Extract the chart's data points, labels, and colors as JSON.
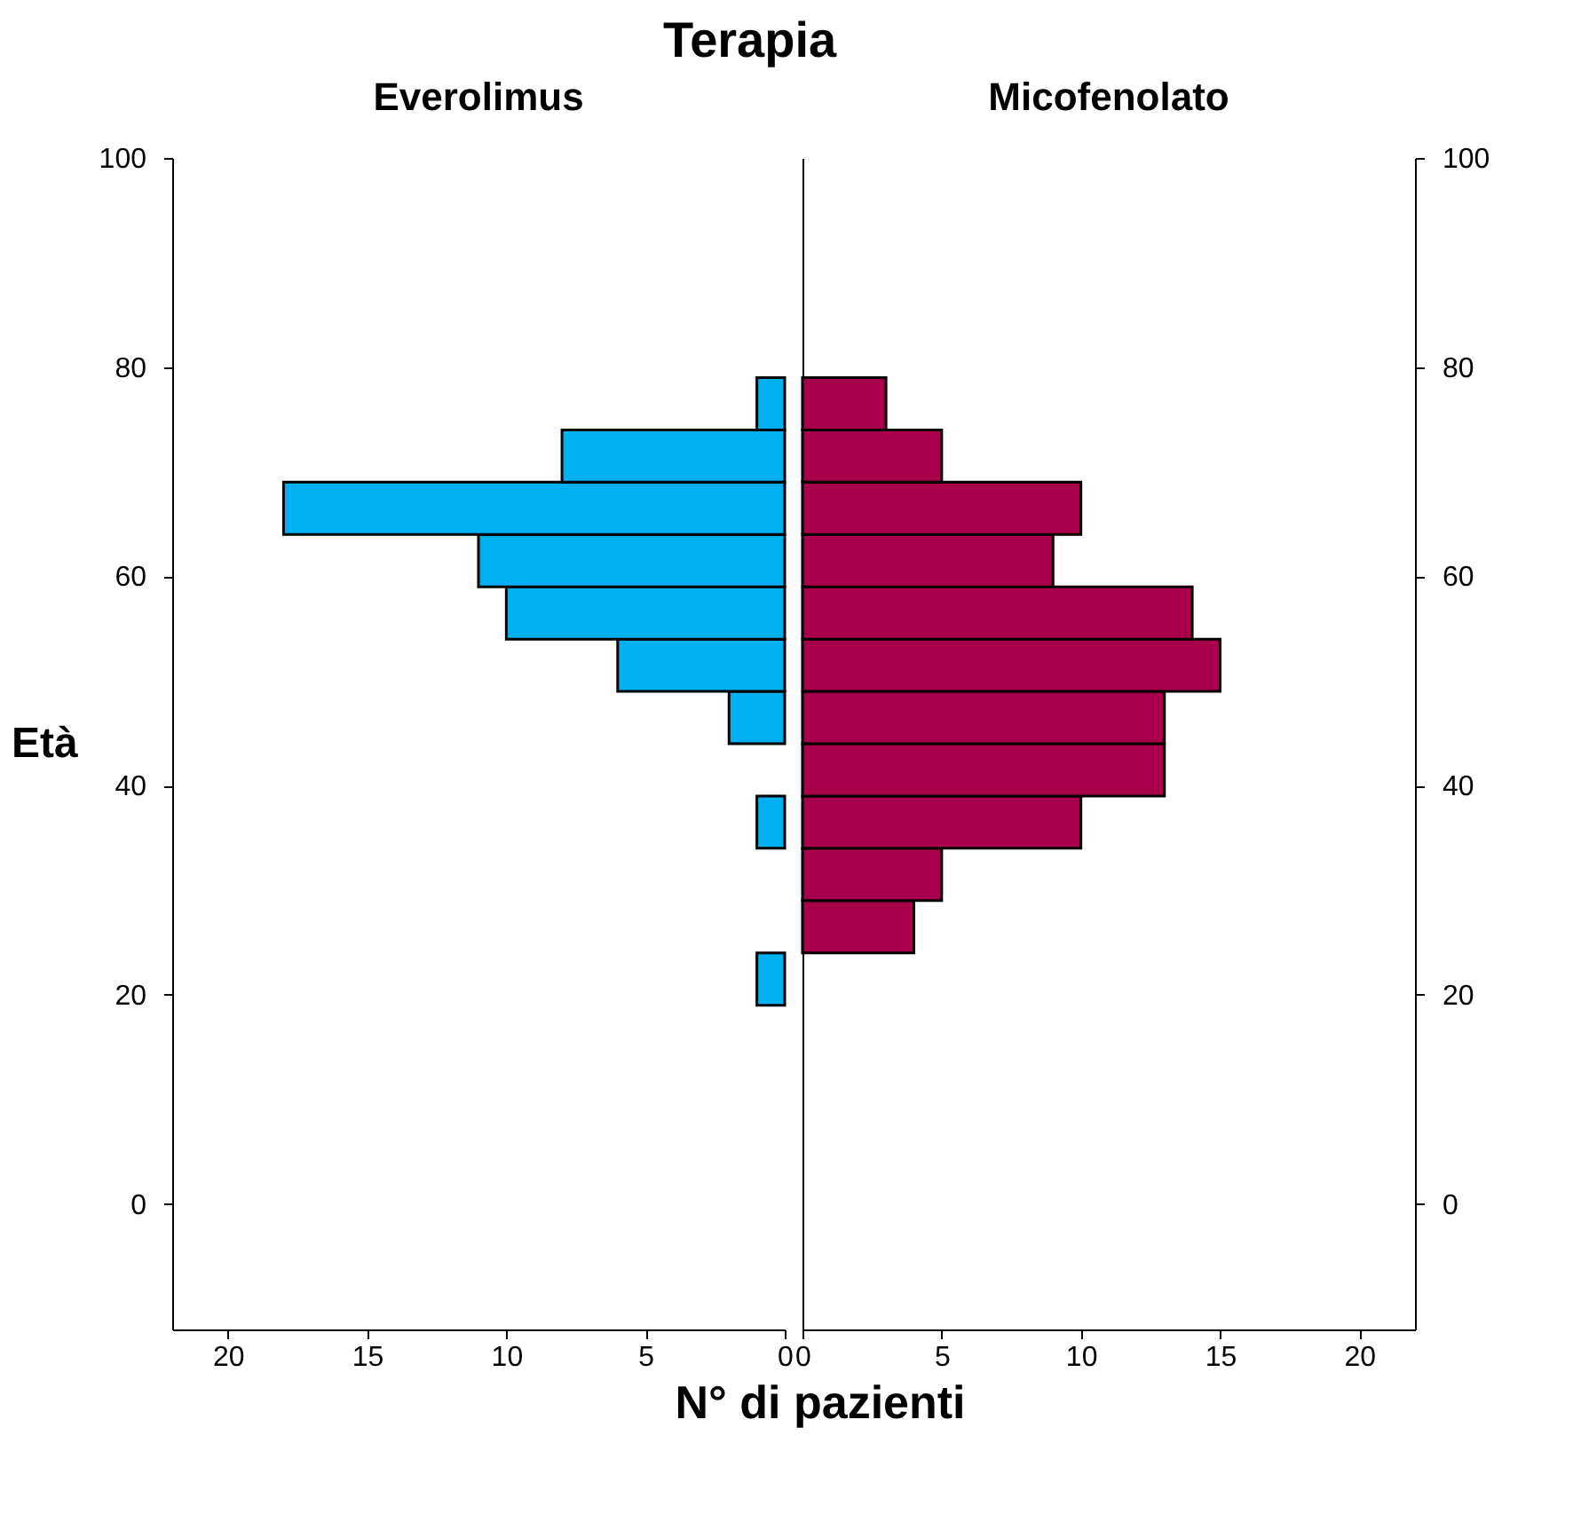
{
  "chart_data": [
    {
      "type": "histogram",
      "orientation": "horizontal",
      "title": "Terapia",
      "subtitle": "Everolimus",
      "ylabel": "Età",
      "xlabel": "N° di pazienti",
      "color": "#00b0f0",
      "bins": [
        19,
        24,
        29,
        34,
        39,
        44,
        49,
        54,
        59,
        64,
        69,
        74,
        79
      ],
      "values": [
        1,
        0,
        0,
        1,
        0,
        2,
        6,
        10,
        11,
        18,
        8,
        1
      ],
      "xlim": [
        22,
        0
      ],
      "xticks": [
        0,
        5,
        10,
        15,
        20
      ],
      "ylim": [
        -12,
        100
      ],
      "yticks": [
        0,
        20,
        40,
        60,
        80,
        100
      ],
      "grid": false
    },
    {
      "type": "histogram",
      "orientation": "horizontal",
      "subtitle": "Micofenolato",
      "color": "#a8004a",
      "bins": [
        19,
        24,
        29,
        34,
        39,
        44,
        49,
        54,
        59,
        64,
        69,
        74,
        79
      ],
      "values": [
        0,
        4,
        5,
        10,
        13,
        13,
        15,
        14,
        9,
        10,
        5,
        3
      ],
      "xlim": [
        0,
        22
      ],
      "xticks": [
        0,
        5,
        10,
        15,
        20
      ],
      "ylim": [
        -12,
        100
      ],
      "yticks": [
        0,
        20,
        40,
        60,
        80,
        100
      ],
      "grid": false
    }
  ]
}
